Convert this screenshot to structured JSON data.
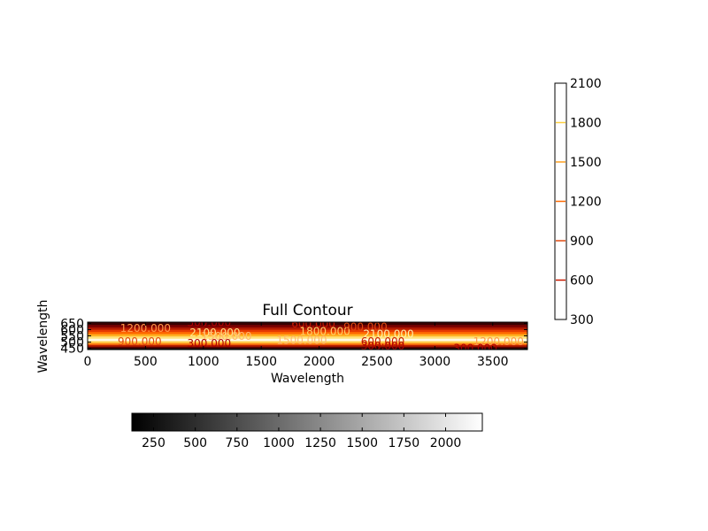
{
  "chart_data": {
    "type": "heatmap",
    "title": "Full Contour",
    "xlabel": "Wavelength",
    "ylabel": "Wavelength",
    "xlim": [
      0,
      3800
    ],
    "ylim": [
      440,
      660
    ],
    "x_ticks": [
      0,
      500,
      1000,
      1500,
      2000,
      2500,
      3000,
      3500
    ],
    "x_tick_labels": [
      "0",
      "500",
      "1000",
      "1500",
      "2000",
      "2500",
      "3000",
      "3500"
    ],
    "y_ticks": [
      450,
      500,
      550,
      600,
      650
    ],
    "y_tick_labels": [
      "450",
      "500",
      "550",
      "600",
      "650"
    ],
    "colormap": "afmhot",
    "color_bands": [
      {
        "y_from": 440,
        "y_to": 452,
        "color": "#000000"
      },
      {
        "y_from": 452,
        "y_to": 466,
        "color": "#5a0000"
      },
      {
        "y_from": 466,
        "y_to": 480,
        "color": "#b81e00"
      },
      {
        "y_from": 480,
        "y_to": 494,
        "color": "#ff7a10"
      },
      {
        "y_from": 494,
        "y_to": 510,
        "color": "#ffcd4a"
      },
      {
        "y_from": 510,
        "y_to": 530,
        "color": "#fffbe6"
      },
      {
        "y_from": 530,
        "y_to": 548,
        "color": "#ffe27a"
      },
      {
        "y_from": 548,
        "y_to": 566,
        "color": "#ffb020"
      },
      {
        "y_from": 566,
        "y_to": 584,
        "color": "#ff6a00"
      },
      {
        "y_from": 584,
        "y_to": 602,
        "color": "#e63a00"
      },
      {
        "y_from": 602,
        "y_to": 620,
        "color": "#b11800"
      },
      {
        "y_from": 620,
        "y_to": 640,
        "color": "#7a0000"
      },
      {
        "y_from": 640,
        "y_to": 660,
        "color": "#3a0000"
      }
    ],
    "contour_labels": [
      {
        "text": "1200.000",
        "x": 500,
        "y": 610,
        "color": "#ff9a4a"
      },
      {
        "text": "300.000",
        "x": 1050,
        "y": 655,
        "color": "#b00000"
      },
      {
        "text": "2100.000",
        "x": 1100,
        "y": 575,
        "color": "#ffe38a"
      },
      {
        "text": "1500.000",
        "x": 1200,
        "y": 545,
        "color": "#ffb870"
      },
      {
        "text": "600.000",
        "x": 1950,
        "y": 645,
        "color": "#c81a00"
      },
      {
        "text": "1800.000",
        "x": 2050,
        "y": 585,
        "color": "#ffd06a"
      },
      {
        "text": "900.000",
        "x": 2400,
        "y": 620,
        "color": "#e04a10"
      },
      {
        "text": "2100.000",
        "x": 2600,
        "y": 565,
        "color": "#fff2b0"
      },
      {
        "text": "900.000",
        "x": 450,
        "y": 505,
        "color": "#e04a10"
      },
      {
        "text": "300.000",
        "x": 1050,
        "y": 490,
        "color": "#b00000"
      },
      {
        "text": "1500.000",
        "x": 1850,
        "y": 515,
        "color": "#ffb870"
      },
      {
        "text": "600.000",
        "x": 2550,
        "y": 505,
        "color": "#c81a00"
      },
      {
        "text": "300.000",
        "x": 2550,
        "y": 468,
        "color": "#b00000"
      },
      {
        "text": "1200.000",
        "x": 3550,
        "y": 505,
        "color": "#ff9a4a"
      },
      {
        "text": "300.000",
        "x": 3350,
        "y": 452,
        "color": "#b00000"
      }
    ],
    "contour_colorbar": {
      "orientation": "vertical",
      "range": [
        300,
        2100
      ],
      "tick_labels": [
        "300",
        "600",
        "900",
        "1200",
        "1500",
        "1800",
        "2100"
      ],
      "levels": [
        {
          "value": 600,
          "color": "#c81a00"
        },
        {
          "value": 900,
          "color": "#e04a10"
        },
        {
          "value": 1200,
          "color": "#ff6a00"
        },
        {
          "value": 1500,
          "color": "#ffa020"
        },
        {
          "value": 1800,
          "color": "#ffd040"
        }
      ]
    },
    "image_colorbar": {
      "orientation": "horizontal",
      "colormap": "gray",
      "range": [
        120,
        2220
      ],
      "tick_labels": [
        "250",
        "500",
        "750",
        "1000",
        "1250",
        "1500",
        "1750",
        "2000"
      ],
      "tick_values": [
        250,
        500,
        750,
        1000,
        1250,
        1500,
        1750,
        2000
      ]
    }
  }
}
